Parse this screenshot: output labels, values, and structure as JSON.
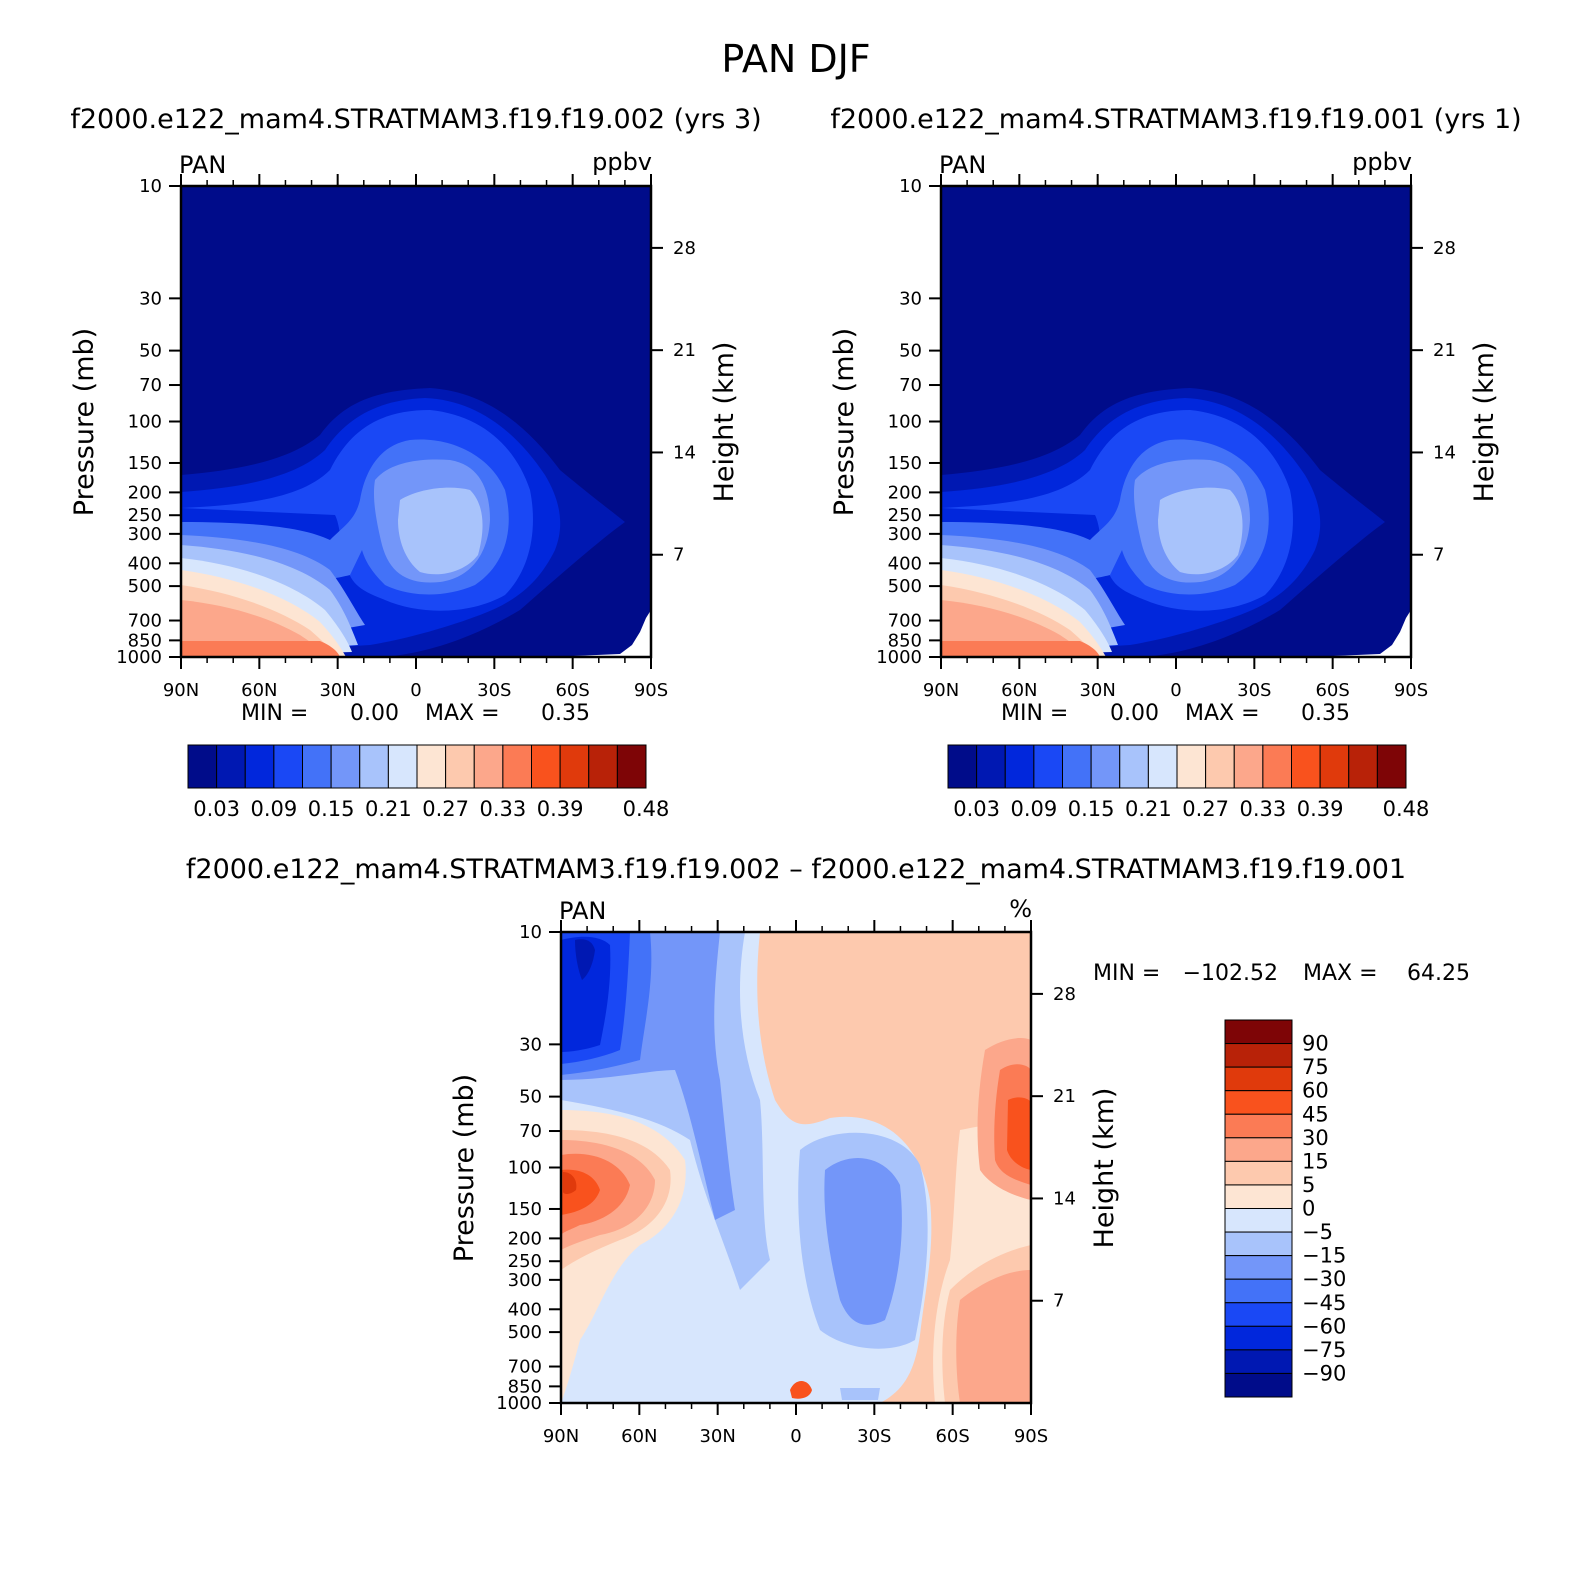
{
  "figure_title": "PAN DJF",
  "colors": {
    "abs_levels": [
      "#000c8a",
      "#0018b2",
      "#0127dc",
      "#1a48f5",
      "#4372f8",
      "#7396f9",
      "#a8c3fb",
      "#d7e6fd",
      "#fde5d3",
      "#fdc9ae",
      "#fca78b",
      "#fb7b55",
      "#f9521d",
      "#e03a0c",
      "#b82208",
      "#7e0506"
    ],
    "diff_levels": [
      "#000c8a",
      "#0018b2",
      "#0127dc",
      "#1a48f5",
      "#4372f8",
      "#7396f9",
      "#a8c3fb",
      "#d7e6fd",
      "#fde5d3",
      "#fdc9ae",
      "#fca78b",
      "#fb7b55",
      "#f9521d",
      "#e03a0c",
      "#b82208",
      "#7e0506"
    ]
  },
  "chart_data": [
    {
      "type": "contour",
      "title": "f2000.e122_mam4.STRATMAM3.f19.f19.002 (yrs 3)",
      "left_label": "PAN",
      "right_label": "ppbv",
      "ylabel": "Pressure (mb)",
      "y2label": "Height (km)",
      "x_ticks": [
        "90N",
        "60N",
        "30N",
        "0",
        "30S",
        "60S",
        "90S"
      ],
      "y_ticks": [
        "10",
        "30",
        "50",
        "70",
        "100",
        "150",
        "200",
        "250",
        "300",
        "400",
        "500",
        "700",
        "850",
        "1000"
      ],
      "y2_ticks": [
        "28",
        "21",
        "14",
        "7"
      ],
      "ylim": [
        1000,
        10
      ],
      "stats": {
        "min_label": "MIN =",
        "min": "0.00",
        "max_label": "MAX =",
        "max": "0.35"
      },
      "colorbar_labels": [
        "0.03",
        "0.09",
        "0.15",
        "0.21",
        "0.27",
        "0.33",
        "0.39",
        "0.48"
      ]
    },
    {
      "type": "contour",
      "title": "f2000.e122_mam4.STRATMAM3.f19.f19.001 (yrs 1)",
      "left_label": "PAN",
      "right_label": "ppbv",
      "ylabel": "Pressure (mb)",
      "y2label": "Height (km)",
      "x_ticks": [
        "90N",
        "60N",
        "30N",
        "0",
        "30S",
        "60S",
        "90S"
      ],
      "y_ticks": [
        "10",
        "30",
        "50",
        "70",
        "100",
        "150",
        "200",
        "250",
        "300",
        "400",
        "500",
        "700",
        "850",
        "1000"
      ],
      "y2_ticks": [
        "28",
        "21",
        "14",
        "7"
      ],
      "ylim": [
        1000,
        10
      ],
      "stats": {
        "min_label": "MIN =",
        "min": "0.00",
        "max_label": "MAX =",
        "max": "0.35"
      },
      "colorbar_labels": [
        "0.03",
        "0.09",
        "0.15",
        "0.21",
        "0.27",
        "0.33",
        "0.39",
        "0.48"
      ]
    },
    {
      "type": "contour",
      "title": "f2000.e122_mam4.STRATMAM3.f19.f19.002 – f2000.e122_mam4.STRATMAM3.f19.f19.001",
      "left_label": "PAN",
      "right_label": "%",
      "ylabel": "Pressure (mb)",
      "y2label": "Height (km)",
      "x_ticks": [
        "90N",
        "60N",
        "30N",
        "0",
        "30S",
        "60S",
        "90S"
      ],
      "y_ticks": [
        "10",
        "30",
        "50",
        "70",
        "100",
        "150",
        "200",
        "250",
        "300",
        "400",
        "500",
        "700",
        "850",
        "1000"
      ],
      "y2_ticks": [
        "28",
        "21",
        "14",
        "7"
      ],
      "ylim": [
        1000,
        10
      ],
      "stats": {
        "min_label": "MIN =",
        "min": "−102.52",
        "max_label": "MAX =",
        "max": "64.25"
      },
      "colorbar_labels": [
        "90",
        "75",
        "60",
        "45",
        "30",
        "15",
        "5",
        "0",
        "−5",
        "−15",
        "−30",
        "−45",
        "−60",
        "−75",
        "−90"
      ]
    }
  ]
}
